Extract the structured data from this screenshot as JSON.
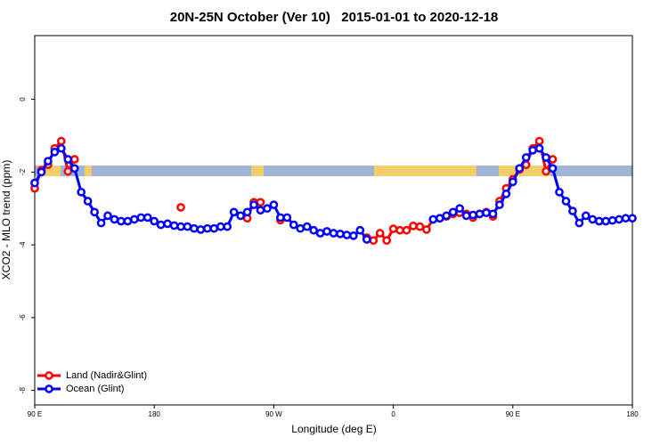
{
  "chart_data": {
    "type": "line",
    "title": "20N-25N October (Ver 10)   2015-01-01 to 2020-12-18",
    "xlabel": "Longitude (deg E)",
    "ylabel": "XCO2 - MLO trend (ppm)",
    "x": [
      90,
      95,
      100,
      105,
      110,
      115,
      120,
      125,
      130,
      135,
      140,
      145,
      150,
      155,
      160,
      165,
      170,
      175,
      180,
      185,
      190,
      195,
      200,
      205,
      210,
      215,
      220,
      225,
      230,
      235,
      240,
      245,
      250,
      255,
      260,
      265,
      270,
      275,
      280,
      285,
      290,
      295,
      300,
      305,
      310,
      315,
      320,
      325,
      330,
      335,
      340,
      345,
      350,
      355,
      360,
      365,
      370,
      375,
      380,
      385,
      390,
      395,
      400,
      405,
      410,
      415,
      420,
      425,
      430,
      435,
      440,
      445,
      450,
      455,
      460,
      465,
      470,
      475,
      480,
      485,
      490,
      495,
      500,
      505,
      510,
      515,
      520,
      525,
      530,
      535,
      540
    ],
    "xlim": [
      90,
      540
    ],
    "xticks": [
      {
        "value": 90,
        "label": "90 E"
      },
      180,
      {
        "value": 270,
        "label": "90 W"
      },
      {
        "value": 360,
        "label": "0"
      },
      {
        "value": 450,
        "label": "90 E"
      },
      {
        "value": 540,
        "label": "180"
      }
    ],
    "ylim": [
      -8.4,
      1.75
    ],
    "yticks": [
      0,
      -2,
      -4,
      -6,
      -8
    ],
    "legend": "bottom-left",
    "series": [
      {
        "name": "Land (Nadir&Glint)",
        "color": "#ff0000",
        "values": [
          -2.45,
          -1.95,
          -1.8,
          -1.35,
          -1.15,
          -1.98,
          -1.65,
          null,
          null,
          null,
          null,
          null,
          null,
          null,
          null,
          null,
          null,
          null,
          null,
          null,
          null,
          null,
          -2.97,
          null,
          null,
          null,
          null,
          null,
          null,
          null,
          null,
          null,
          -3.27,
          -2.83,
          -2.83,
          null,
          null,
          -3.32,
          null,
          null,
          null,
          null,
          null,
          null,
          null,
          null,
          null,
          null,
          null,
          null,
          -3.8,
          -3.88,
          -3.68,
          -3.88,
          -3.56,
          -3.6,
          -3.6,
          -3.48,
          -3.5,
          -3.58,
          -3.3,
          -3.27,
          -3.22,
          -3.15,
          -3.12,
          -3.15,
          -3.25,
          -3.15,
          -3.1,
          -3.22,
          -2.8,
          -2.45,
          -2.2,
          -1.93,
          -1.8,
          -1.35,
          -1.15,
          -1.98,
          -1.65,
          null,
          null,
          null,
          null,
          null,
          null,
          null,
          null,
          null,
          null,
          null,
          null
        ]
      },
      {
        "name": "Ocean (Glint)",
        "color": "#0000ff",
        "values": [
          -2.3,
          -2.0,
          -1.7,
          -1.45,
          -1.35,
          -1.65,
          -1.9,
          -2.55,
          -2.8,
          -3.1,
          -3.4,
          -3.2,
          -3.3,
          -3.35,
          -3.35,
          -3.3,
          -3.25,
          -3.25,
          -3.35,
          -3.45,
          -3.42,
          -3.47,
          -3.5,
          -3.5,
          -3.55,
          -3.58,
          -3.55,
          -3.55,
          -3.5,
          -3.5,
          -3.1,
          -3.2,
          -3.1,
          -2.9,
          -3.05,
          -3.0,
          -2.9,
          -3.25,
          -3.25,
          -3.45,
          -3.55,
          -3.5,
          -3.6,
          -3.68,
          -3.63,
          -3.68,
          -3.7,
          -3.73,
          -3.75,
          -3.6,
          -3.85,
          null,
          null,
          null,
          null,
          null,
          null,
          null,
          null,
          null,
          -3.3,
          -3.27,
          -3.2,
          -3.1,
          -3.0,
          -3.2,
          -3.18,
          -3.15,
          -3.12,
          -3.15,
          -2.9,
          -2.6,
          -2.27,
          -1.9,
          -1.6,
          -1.4,
          -1.35,
          -1.6,
          -1.9,
          -2.55,
          -2.8,
          -3.07,
          -3.4,
          -3.2,
          -3.3,
          -3.35,
          -3.35,
          -3.33,
          -3.3,
          -3.27,
          -3.27
        ]
      }
    ]
  }
}
